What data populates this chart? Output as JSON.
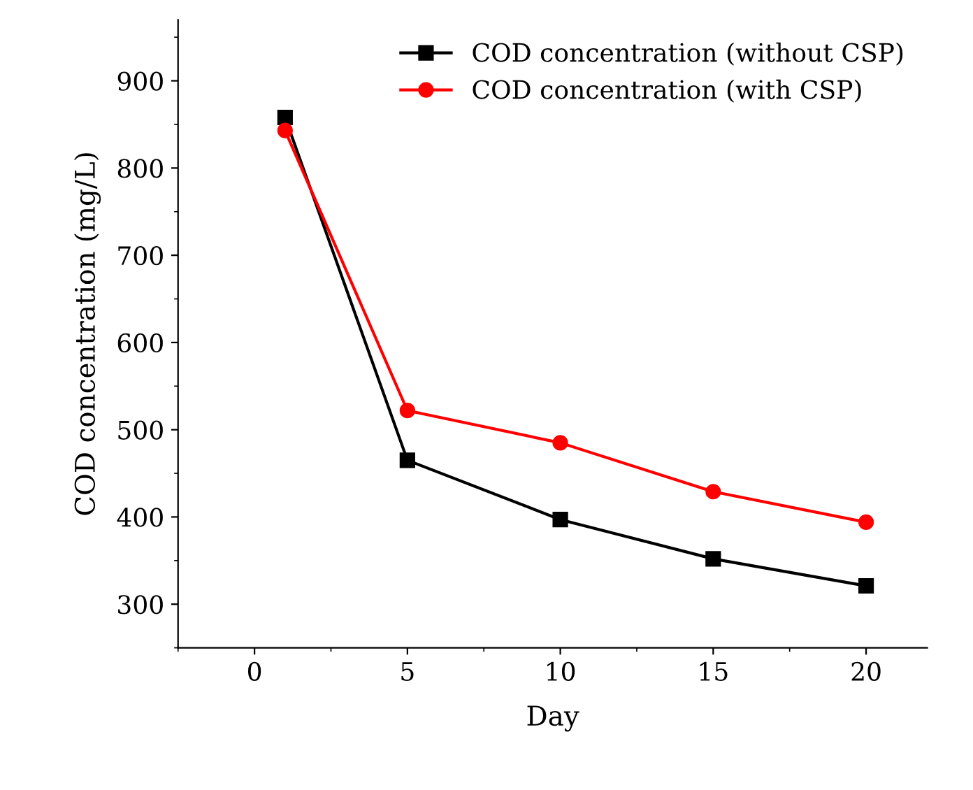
{
  "chart_data": {
    "type": "line",
    "xlabel": "Day",
    "ylabel": "COD concentration (mg/L)",
    "x": [
      1,
      5,
      10,
      15,
      20
    ],
    "series": [
      {
        "name": "COD concentration (without CSP)",
        "color": "#000000",
        "marker": "square",
        "values": [
          858,
          465,
          397,
          352,
          321
        ]
      },
      {
        "name": "COD concentration (with CSP)",
        "color": "#ff0000",
        "marker": "circle",
        "values": [
          843,
          522,
          485,
          429,
          394
        ]
      }
    ],
    "xlim": [
      -2.5,
      22
    ],
    "xticks": [
      0,
      5,
      10,
      15,
      20
    ],
    "ylim": [
      250,
      970
    ],
    "yticks": [
      300,
      400,
      500,
      600,
      700,
      800,
      900
    ],
    "grid": false,
    "legend": "top right",
    "line_style": "solid"
  }
}
